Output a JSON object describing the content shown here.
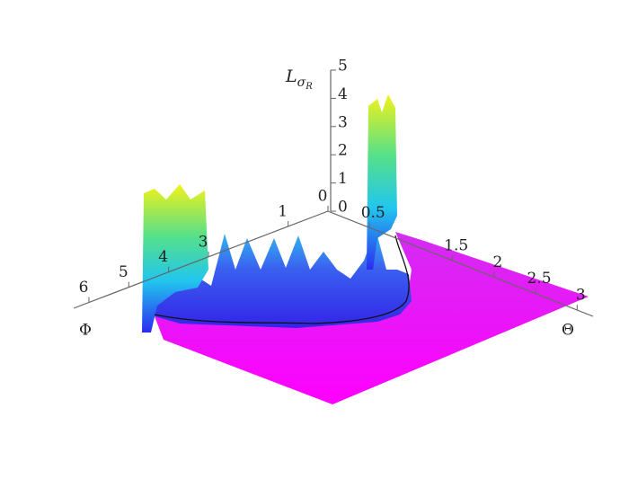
{
  "chart_data": {
    "type": "surface",
    "xlabel": "Φ",
    "ylabel": "Θ",
    "zlabel": "L",
    "zlabel_subscript": "σ",
    "zlabel_subsubscript": "R",
    "xlim": [
      0,
      6
    ],
    "xticks": [
      0,
      1,
      3,
      4,
      5,
      6
    ],
    "ylim": [
      0,
      3
    ],
    "yticks": [
      0.5,
      1.5,
      2,
      2.5,
      3
    ],
    "zlim": [
      0,
      5
    ],
    "zticks": [
      0,
      1,
      2,
      3,
      4,
      5
    ]
  }
}
